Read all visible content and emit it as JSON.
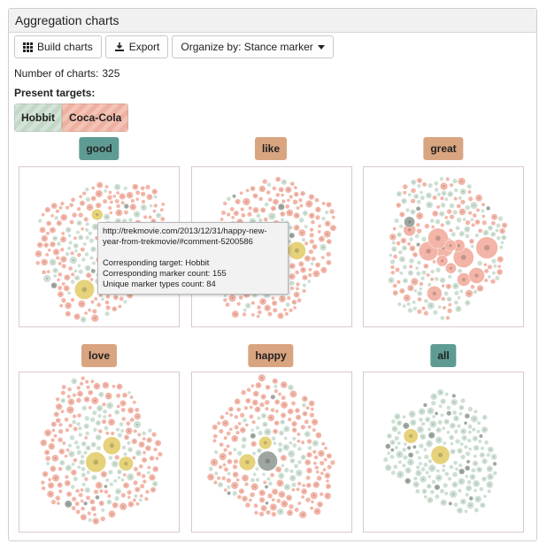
{
  "panel": {
    "title": "Aggregation charts"
  },
  "toolbar": {
    "build_label": "Build charts",
    "export_label": "Export",
    "organize_label": "Organize by: Stance marker"
  },
  "summary": {
    "count_label": "Number of charts:",
    "count_value": "325",
    "targets_label": "Present targets:"
  },
  "targets": [
    {
      "label": "Hobbit",
      "color": "#c9dccd"
    },
    {
      "label": "Coca-Cola",
      "color": "#f0b8aa"
    }
  ],
  "colors": {
    "teal_label": "#5e9b93",
    "orange_label": "#d9a480",
    "salmon": "#f2b5a7",
    "mint": "#cddfd2",
    "yellow": "#e6d27a",
    "gray": "#9ea79f"
  },
  "charts": [
    {
      "label": "good",
      "label_color": "#5e9b93",
      "dominant": "salmon"
    },
    {
      "label": "like",
      "label_color": "#d9a480",
      "dominant": "salmon"
    },
    {
      "label": "great",
      "label_color": "#d9a480",
      "dominant": "mixed"
    },
    {
      "label": "love",
      "label_color": "#d9a480",
      "dominant": "salmon"
    },
    {
      "label": "happy",
      "label_color": "#d9a480",
      "dominant": "salmon"
    },
    {
      "label": "all",
      "label_color": "#5e9b93",
      "dominant": "mint"
    }
  ],
  "tooltip": {
    "url_line1": "http://trekmovie.com/2013/12/31/happy-new-",
    "url_line2": "year-from-trekmovie/#comment-5200586",
    "target_line": "Corresponding target: Hobbit",
    "marker_count_line": "Corresponding marker count: 155",
    "unique_types_line": "Unique marker types count: 84"
  }
}
